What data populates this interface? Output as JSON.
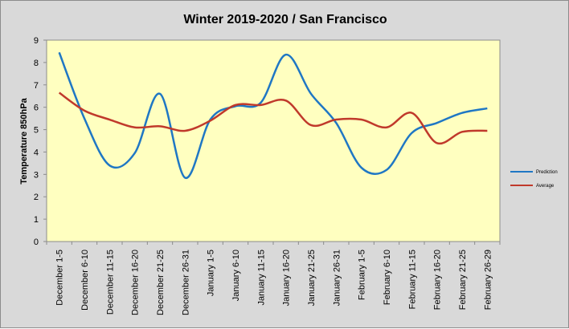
{
  "chart_data": {
    "type": "line",
    "title": "Winter 2019-2020 / San Francisco",
    "xlabel": "",
    "ylabel": "Temperature 850hPa",
    "ylim": [
      0,
      9
    ],
    "yticks": [
      0,
      1,
      2,
      3,
      4,
      5,
      6,
      7,
      8,
      9
    ],
    "grid": false,
    "legend_position": "right",
    "categories": [
      "December 1-5",
      "December 6-10",
      "December 11-15",
      "December 16-20",
      "December 21-25",
      "December 26-31",
      "January 1-5",
      "January 6-10",
      "January 11-15",
      "January 16-20",
      "January 21-25",
      "January 26-31",
      "February 1-5",
      "February 6-10",
      "February 11-15",
      "February 16-20",
      "February 21-25",
      "February 26-29"
    ],
    "series": [
      {
        "name": "Prediction",
        "color": "#1f77c4",
        "values": [
          8.45,
          5.5,
          3.4,
          3.95,
          6.6,
          2.85,
          5.45,
          6.05,
          6.2,
          8.35,
          6.6,
          5.3,
          3.3,
          3.2,
          4.85,
          5.3,
          5.75,
          5.95
        ]
      },
      {
        "name": "Average",
        "color": "#c0392b",
        "values": [
          6.65,
          5.85,
          5.45,
          5.1,
          5.15,
          4.95,
          5.4,
          6.1,
          6.1,
          6.3,
          5.2,
          5.45,
          5.45,
          5.1,
          5.75,
          4.4,
          4.9,
          4.95
        ]
      }
    ]
  }
}
